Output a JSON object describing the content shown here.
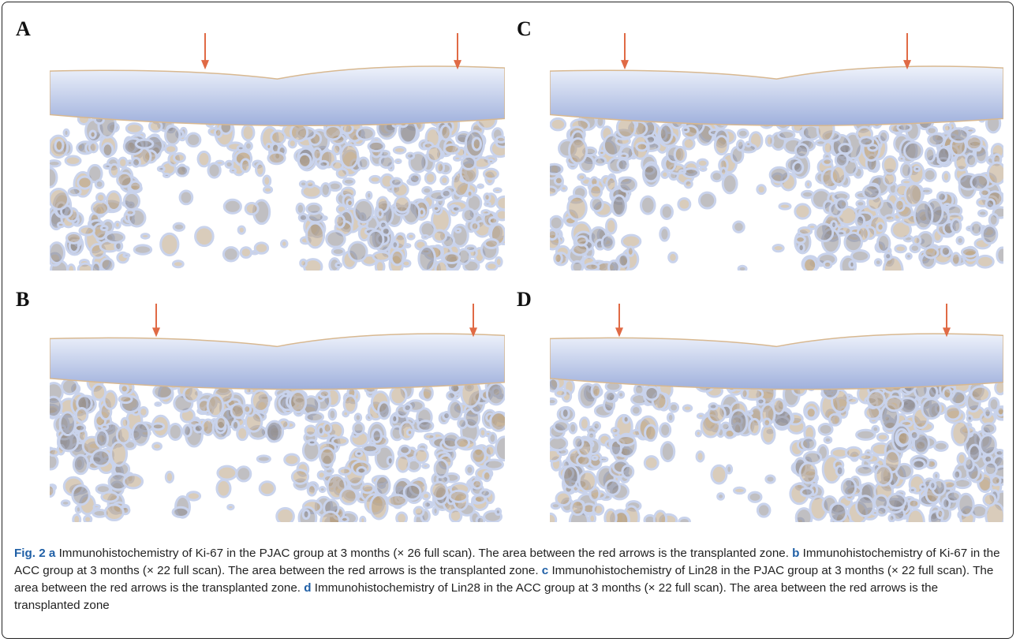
{
  "figure": {
    "panels": [
      {
        "label": "A"
      },
      {
        "label": "B"
      },
      {
        "label": "C"
      },
      {
        "label": "D"
      }
    ]
  },
  "caption": {
    "label": "Fig. 2",
    "parts": [
      {
        "letter": "a",
        "text": " Immunohistochemistry of Ki-67 in the PJAC group at 3 months (× 26 full scan). The area between the red arrows is the transplanted zone. "
      },
      {
        "letter": "b",
        "text": " Immunohistochemistry of Ki-67 in the ACC group at 3 months (× 22 full scan). The area between the red arrows is the transplanted zone. "
      },
      {
        "letter": "c",
        "text": " Immunohistochemistry of Lin28 in the PJAC group at 3 months (× 22 full scan). The area between the red arrows is the transplanted zone. "
      },
      {
        "letter": "d",
        "text": " Immunohistochemistry of Lin28 in the ACC group at 3 months (× 22 full scan). The area between the red arrows is the transplanted zone"
      }
    ]
  }
}
